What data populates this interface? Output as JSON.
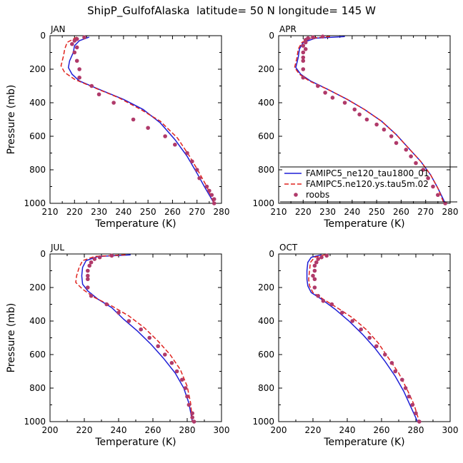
{
  "figure_title": "ShipP_GulfofAlaska  latitude= 50 N longitude= 145 W",
  "colors": {
    "model1": "#1f1fd6",
    "model2": "#e0241f",
    "roobs": "#b03a6a"
  },
  "chart_data": [
    {
      "type": "line",
      "panel_label": "JAN",
      "xlabel": "Temperature (K)",
      "ylabel": "Pressure (mb)",
      "xlim": [
        210,
        280
      ],
      "ylim": [
        1000,
        0
      ],
      "xticks": [
        210,
        220,
        230,
        240,
        250,
        260,
        270,
        280
      ],
      "yticks": [
        0,
        200,
        400,
        600,
        800,
        1000
      ],
      "series": [
        {
          "kind": "solid",
          "points": [
            [
              226,
              8
            ],
            [
              222,
              30
            ],
            [
              220,
              60
            ],
            [
              219.5,
              100
            ],
            [
              218,
              150
            ],
            [
              217.5,
              190
            ],
            [
              219,
              230
            ],
            [
              222,
              270
            ],
            [
              230,
              320
            ],
            [
              240,
              380
            ],
            [
              248,
              440
            ],
            [
              255,
              520
            ],
            [
              261,
              620
            ],
            [
              266,
              720
            ],
            [
              270,
              820
            ],
            [
              273,
              900
            ],
            [
              277,
              1000
            ]
          ]
        },
        {
          "kind": "dashed",
          "points": [
            [
              221,
              8
            ],
            [
              217,
              40
            ],
            [
              216,
              80
            ],
            [
              215.5,
              120
            ],
            [
              214.5,
              180
            ],
            [
              216,
              220
            ],
            [
              220,
              260
            ],
            [
              228,
              310
            ],
            [
              238,
              370
            ],
            [
              247,
              440
            ],
            [
              255,
              510
            ],
            [
              262,
              610
            ],
            [
              267,
              720
            ],
            [
              271,
              820
            ],
            [
              274,
              900
            ],
            [
              277,
              1000
            ]
          ]
        },
        {
          "kind": "dots",
          "points": [
            [
              224,
              10
            ],
            [
              221,
              20
            ],
            [
              220,
              30
            ],
            [
              219,
              50
            ],
            [
              221,
              70
            ],
            [
              220,
              100
            ],
            [
              221,
              150
            ],
            [
              222,
              200
            ],
            [
              222,
              250
            ],
            [
              227,
              300
            ],
            [
              230,
              350
            ],
            [
              236,
              400
            ],
            [
              244,
              500
            ],
            [
              250,
              550
            ],
            [
              257,
              600
            ],
            [
              261,
              650
            ],
            [
              266,
              700
            ],
            [
              268,
              750
            ],
            [
              270,
              800
            ],
            [
              271,
              850
            ],
            [
              274,
              900
            ],
            [
              275,
              925
            ],
            [
              276,
              950
            ],
            [
              277,
              975
            ],
            [
              277,
              1000
            ]
          ]
        }
      ]
    },
    {
      "type": "line",
      "panel_label": "APR",
      "xlabel": "Temperature (K)",
      "ylabel": "",
      "xlim": [
        210,
        280
      ],
      "ylim": [
        1000,
        0
      ],
      "xticks": [
        210,
        220,
        230,
        240,
        250,
        260,
        270,
        280
      ],
      "yticks": [
        0,
        200,
        400,
        600,
        800,
        1000
      ],
      "legend_entries": [
        "FAMIPC5_ne120_tau1800_01",
        "FAMIPC5.ne120.ys.tau5m.02",
        "roobs"
      ],
      "legend_position": "bottom-right",
      "series": [
        {
          "kind": "solid",
          "points": [
            [
              237,
              5
            ],
            [
              225,
              15
            ],
            [
              220,
              40
            ],
            [
              218.5,
              80
            ],
            [
              218,
              130
            ],
            [
              217,
              190
            ],
            [
              219,
              230
            ],
            [
              223,
              270
            ],
            [
              230,
              320
            ],
            [
              238,
              380
            ],
            [
              245,
              440
            ],
            [
              252,
              510
            ],
            [
              258,
              590
            ],
            [
              263,
              670
            ],
            [
              268,
              750
            ],
            [
              272,
              830
            ],
            [
              275,
              910
            ],
            [
              278,
              1000
            ]
          ]
        },
        {
          "kind": "dashed",
          "points": [
            [
              231,
              5
            ],
            [
              223,
              15
            ],
            [
              219.5,
              40
            ],
            [
              218,
              80
            ],
            [
              217.5,
              130
            ],
            [
              216.5,
              190
            ],
            [
              218.5,
              230
            ],
            [
              222.5,
              270
            ],
            [
              230,
              320
            ],
            [
              238,
              380
            ],
            [
              245,
              440
            ],
            [
              252,
              510
            ],
            [
              258,
              590
            ],
            [
              263,
              670
            ],
            [
              268,
              750
            ],
            [
              272,
              830
            ],
            [
              275,
              910
            ],
            [
              277.5,
              1000
            ]
          ]
        },
        {
          "kind": "dots",
          "points": [
            [
              228,
              5
            ],
            [
              224,
              10
            ],
            [
              222,
              15
            ],
            [
              221,
              25
            ],
            [
              221,
              40
            ],
            [
              220,
              60
            ],
            [
              221,
              80
            ],
            [
              220,
              100
            ],
            [
              220,
              130
            ],
            [
              220,
              150
            ],
            [
              220,
              200
            ],
            [
              220,
              250
            ],
            [
              226,
              300
            ],
            [
              229,
              340
            ],
            [
              232,
              370
            ],
            [
              237,
              400
            ],
            [
              241,
              440
            ],
            [
              243,
              470
            ],
            [
              246,
              500
            ],
            [
              250,
              530
            ],
            [
              253,
              560
            ],
            [
              256,
              600
            ],
            [
              258,
              640
            ],
            [
              262,
              680
            ],
            [
              264,
              720
            ],
            [
              266,
              760
            ],
            [
              269,
              800
            ],
            [
              271,
              850
            ],
            [
              273,
              900
            ],
            [
              275,
              950
            ],
            [
              278,
              1000
            ]
          ]
        }
      ]
    },
    {
      "type": "line",
      "panel_label": "JUL",
      "xlabel": "Temperature (K)",
      "ylabel": "Pressure (mb)",
      "xlim": [
        200,
        300
      ],
      "ylim": [
        1000,
        0
      ],
      "xticks": [
        200,
        220,
        240,
        260,
        280,
        300
      ],
      "yticks": [
        0,
        200,
        400,
        600,
        800,
        1000
      ],
      "series": [
        {
          "kind": "solid",
          "points": [
            [
              247,
              5
            ],
            [
              228,
              15
            ],
            [
              221,
              40
            ],
            [
              219,
              80
            ],
            [
              218.5,
              130
            ],
            [
              219,
              180
            ],
            [
              222,
              220
            ],
            [
              228,
              270
            ],
            [
              236,
              320
            ],
            [
              243,
              390
            ],
            [
              251,
              460
            ],
            [
              259,
              540
            ],
            [
              266,
              620
            ],
            [
              273,
              710
            ],
            [
              278,
              800
            ],
            [
              281,
              890
            ],
            [
              283,
              1000
            ]
          ]
        },
        {
          "kind": "dashed",
          "points": [
            [
              244,
              5
            ],
            [
              226,
              15
            ],
            [
              219,
              40
            ],
            [
              217,
              80
            ],
            [
              215.5,
              130
            ],
            [
              215,
              170
            ],
            [
              219,
              210
            ],
            [
              226,
              260
            ],
            [
              236,
              310
            ],
            [
              246,
              370
            ],
            [
              255,
              440
            ],
            [
              263,
              520
            ],
            [
              270,
              600
            ],
            [
              276,
              690
            ],
            [
              280,
              790
            ],
            [
              282,
              890
            ],
            [
              283,
              1000
            ]
          ]
        },
        {
          "kind": "dots",
          "points": [
            [
              236,
              10
            ],
            [
              229,
              20
            ],
            [
              226,
              30
            ],
            [
              224,
              50
            ],
            [
              223,
              70
            ],
            [
              222,
              100
            ],
            [
              222,
              130
            ],
            [
              222,
              150
            ],
            [
              222,
              200
            ],
            [
              224,
              250
            ],
            [
              233,
              300
            ],
            [
              240,
              350
            ],
            [
              246,
              400
            ],
            [
              253,
              450
            ],
            [
              258,
              500
            ],
            [
              263,
              550
            ],
            [
              267,
              600
            ],
            [
              271,
              650
            ],
            [
              274,
              700
            ],
            [
              277,
              750
            ],
            [
              279,
              800
            ],
            [
              280,
              850
            ],
            [
              281,
              900
            ],
            [
              283,
              950
            ],
            [
              283,
              975
            ],
            [
              284,
              1000
            ]
          ]
        }
      ]
    },
    {
      "type": "line",
      "panel_label": "OCT",
      "xlabel": "Temperature (K)",
      "ylabel": "",
      "xlim": [
        200,
        300
      ],
      "ylim": [
        1000,
        0
      ],
      "xticks": [
        200,
        220,
        240,
        260,
        280,
        300
      ],
      "yticks": [
        0,
        200,
        400,
        600,
        800,
        1000
      ],
      "series": [
        {
          "kind": "solid",
          "points": [
            [
              225,
              5
            ],
            [
              219,
              20
            ],
            [
              217,
              50
            ],
            [
              216.5,
              100
            ],
            [
              216.5,
              150
            ],
            [
              217,
              190
            ],
            [
              219,
              230
            ],
            [
              225,
              270
            ],
            [
              233,
              330
            ],
            [
              241,
              400
            ],
            [
              249,
              480
            ],
            [
              256,
              560
            ],
            [
              262,
              640
            ],
            [
              268,
              730
            ],
            [
              273,
              820
            ],
            [
              277,
              910
            ],
            [
              281,
              1000
            ]
          ]
        },
        {
          "kind": "dashed",
          "points": [
            [
              227,
              5
            ],
            [
              221,
              20
            ],
            [
              218.5,
              50
            ],
            [
              218,
              100
            ],
            [
              217.5,
              150
            ],
            [
              218,
              190
            ],
            [
              220,
              230
            ],
            [
              226,
              270
            ],
            [
              234,
              320
            ],
            [
              243,
              380
            ],
            [
              251,
              450
            ],
            [
              258,
              530
            ],
            [
              264,
              620
            ],
            [
              270,
              710
            ],
            [
              275,
              810
            ],
            [
              279,
              900
            ],
            [
              282,
              1000
            ]
          ]
        },
        {
          "kind": "dots",
          "points": [
            [
              228,
              10
            ],
            [
              225,
              20
            ],
            [
              223,
              30
            ],
            [
              222,
              50
            ],
            [
              221,
              70
            ],
            [
              221,
              100
            ],
            [
              220,
              130
            ],
            [
              221,
              150
            ],
            [
              221,
              200
            ],
            [
              223,
              250
            ],
            [
              226,
              280
            ],
            [
              231,
              300
            ],
            [
              237,
              350
            ],
            [
              243,
              400
            ],
            [
              248,
              450
            ],
            [
              253,
              500
            ],
            [
              257,
              550
            ],
            [
              262,
              600
            ],
            [
              266,
              650
            ],
            [
              268,
              700
            ],
            [
              272,
              750
            ],
            [
              274,
              800
            ],
            [
              276,
              850
            ],
            [
              278,
              900
            ],
            [
              280,
              950
            ],
            [
              282,
              1000
            ]
          ]
        }
      ]
    }
  ]
}
